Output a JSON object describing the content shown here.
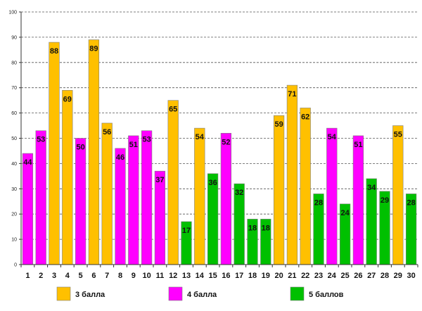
{
  "chart_data": {
    "type": "bar",
    "title": "",
    "xlabel": "",
    "ylabel": "",
    "ylim": [
      0,
      100
    ],
    "yticks": [
      0,
      10,
      20,
      30,
      40,
      50,
      60,
      70,
      80,
      90,
      100
    ],
    "grid": true,
    "categories": [
      "1",
      "2",
      "3",
      "4",
      "5",
      "6",
      "7",
      "8",
      "9",
      "10",
      "11",
      "12",
      "13",
      "14",
      "15",
      "16",
      "17",
      "18",
      "19",
      "20",
      "21",
      "22",
      "23",
      "24",
      "25",
      "26",
      "27",
      "28",
      "29",
      "30"
    ],
    "values": [
      44,
      53,
      88,
      69,
      50,
      89,
      56,
      46,
      51,
      53,
      37,
      65,
      17,
      54,
      36,
      52,
      32,
      18,
      18,
      59,
      71,
      62,
      28,
      54,
      24,
      51,
      34,
      29,
      55,
      28
    ],
    "groups": [
      "4",
      "4",
      "3",
      "3",
      "4",
      "3",
      "3",
      "4",
      "4",
      "4",
      "4",
      "3",
      "5",
      "3",
      "5",
      "4",
      "5",
      "5",
      "5",
      "3",
      "3",
      "3",
      "5",
      "4",
      "5",
      "4",
      "5",
      "5",
      "3",
      "5"
    ],
    "series": [
      {
        "key": "3",
        "name": "3 балла",
        "color": "#FFC000"
      },
      {
        "key": "4",
        "name": "4 балла",
        "color": "#FF00FF"
      },
      {
        "key": "5",
        "name": "5 баллов",
        "color": "#00C000"
      }
    ],
    "legend_position": "bottom"
  }
}
